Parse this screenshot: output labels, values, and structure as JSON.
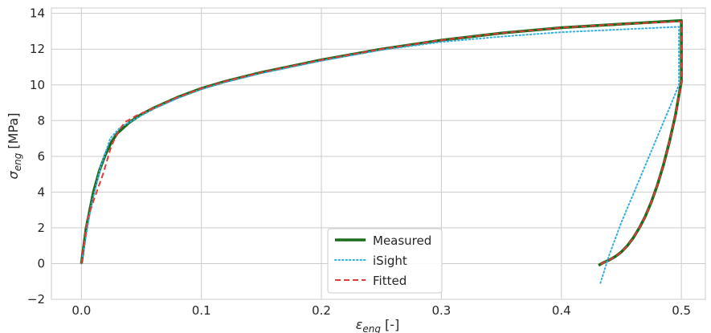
{
  "chart_data": {
    "type": "line",
    "xlabel_main": "ε",
    "xlabel_sub": "eng",
    "xlabel_unit": " [-]",
    "ylabel_main": "σ",
    "ylabel_sub": "eng",
    "ylabel_unit": " [MPa]",
    "xlim": [
      -0.025,
      0.52
    ],
    "ylim": [
      -2,
      14.3
    ],
    "xticks": [
      0.0,
      0.1,
      0.2,
      0.3,
      0.4,
      0.5
    ],
    "xtick_labels": [
      "0.0",
      "0.1",
      "0.2",
      "0.3",
      "0.4",
      "0.5"
    ],
    "yticks": [
      -2,
      0,
      2,
      4,
      6,
      8,
      10,
      12,
      14
    ],
    "ytick_labels": [
      "−2",
      "0",
      "2",
      "4",
      "6",
      "8",
      "10",
      "12",
      "14"
    ],
    "grid": true,
    "legend_position": "bottom-center",
    "series": [
      {
        "name": "Measured",
        "color": "#1a6b1a",
        "style": "solid",
        "x": [
          0.0,
          0.004,
          0.01,
          0.015,
          0.02,
          0.025,
          0.03,
          0.04,
          0.05,
          0.06,
          0.08,
          0.1,
          0.12,
          0.15,
          0.2,
          0.25,
          0.3,
          0.35,
          0.4,
          0.45,
          0.5,
          0.5,
          0.5,
          0.495,
          0.49,
          0.485,
          0.48,
          0.475,
          0.47,
          0.465,
          0.46,
          0.455,
          0.45,
          0.445,
          0.44,
          0.435,
          0.431
        ],
        "y": [
          0.0,
          2.0,
          4.0,
          5.2,
          6.1,
          6.8,
          7.3,
          7.9,
          8.35,
          8.7,
          9.3,
          9.8,
          10.2,
          10.7,
          11.4,
          12.0,
          12.5,
          12.9,
          13.2,
          13.4,
          13.6,
          13.0,
          10.2,
          8.3,
          6.8,
          5.5,
          4.4,
          3.45,
          2.65,
          2.0,
          1.45,
          1.0,
          0.65,
          0.4,
          0.2,
          0.05,
          -0.1
        ]
      },
      {
        "name": "iSight",
        "color": "#33b0e0",
        "style": "dotted",
        "x": [
          0.0,
          0.008,
          0.016,
          0.024,
          0.032,
          0.045,
          0.06,
          0.08,
          0.1,
          0.12,
          0.15,
          0.2,
          0.25,
          0.3,
          0.35,
          0.4,
          0.45,
          0.498,
          0.498,
          0.49,
          0.48,
          0.47,
          0.46,
          0.45,
          0.44,
          0.432
        ],
        "y": [
          0.0,
          3.2,
          5.4,
          7.0,
          7.6,
          8.1,
          8.65,
          9.25,
          9.75,
          10.15,
          10.65,
          11.35,
          11.95,
          12.4,
          12.7,
          12.95,
          13.1,
          13.25,
          10.0,
          8.7,
          7.1,
          5.5,
          3.9,
          2.3,
          0.5,
          -1.2
        ]
      },
      {
        "name": "Fitted",
        "color": "#e03a3a",
        "style": "dashed",
        "x": [
          0.0,
          0.005,
          0.01,
          0.018,
          0.025,
          0.03,
          0.036,
          0.045,
          0.06,
          0.08,
          0.1,
          0.12,
          0.15,
          0.2,
          0.25,
          0.3,
          0.35,
          0.4,
          0.45,
          0.5,
          0.5,
          0.5,
          0.495,
          0.49,
          0.485,
          0.48,
          0.475,
          0.47,
          0.465,
          0.46,
          0.455,
          0.45,
          0.445,
          0.44,
          0.435,
          0.431
        ],
        "y": [
          0.0,
          2.5,
          3.5,
          5.0,
          6.6,
          7.3,
          7.9,
          8.25,
          8.7,
          9.3,
          9.8,
          10.2,
          10.7,
          11.4,
          12.0,
          12.5,
          12.9,
          13.2,
          13.4,
          13.55,
          12.5,
          10.2,
          8.3,
          6.8,
          5.5,
          4.4,
          3.45,
          2.65,
          2.0,
          1.45,
          1.0,
          0.65,
          0.4,
          0.2,
          0.05,
          -0.1
        ]
      }
    ]
  }
}
